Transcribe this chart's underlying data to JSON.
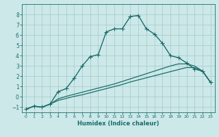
{
  "title": "",
  "xlabel": "Humidex (Indice chaleur)",
  "bg_color": "#cce8e8",
  "grid_color": "#aacece",
  "line_color": "#1a6b6b",
  "xlim": [
    -0.5,
    23.5
  ],
  "ylim": [
    -1.5,
    9.0
  ],
  "yticks": [
    -1,
    0,
    1,
    2,
    3,
    4,
    5,
    6,
    7,
    8
  ],
  "xticks": [
    0,
    1,
    2,
    3,
    4,
    5,
    6,
    7,
    8,
    9,
    10,
    11,
    12,
    13,
    14,
    15,
    16,
    17,
    18,
    19,
    20,
    21,
    22,
    23
  ],
  "series": [
    {
      "x": [
        0,
        1,
        2,
        3,
        4,
        5,
        6,
        7,
        8,
        9,
        10,
        11,
        12,
        13,
        14,
        15,
        16,
        17,
        18,
        19,
        20,
        21,
        22,
        23
      ],
      "y": [
        -1.2,
        -0.9,
        -1.0,
        -0.7,
        0.5,
        0.8,
        1.8,
        3.0,
        3.9,
        4.1,
        6.3,
        6.6,
        6.6,
        7.8,
        7.9,
        6.6,
        6.1,
        5.2,
        4.0,
        3.8,
        3.3,
        2.7,
        2.5,
        1.4
      ],
      "marker": true,
      "linewidth": 1.0,
      "markersize": 4
    },
    {
      "x": [
        0,
        1,
        2,
        3,
        4,
        5,
        6,
        7,
        8,
        9,
        10,
        11,
        12,
        13,
        14,
        15,
        16,
        17,
        18,
        19,
        20,
        21,
        22,
        23
      ],
      "y": [
        -1.2,
        -0.9,
        -1.0,
        -0.7,
        -0.35,
        -0.15,
        0.05,
        0.2,
        0.4,
        0.6,
        0.8,
        1.0,
        1.2,
        1.45,
        1.65,
        1.85,
        2.05,
        2.25,
        2.45,
        2.65,
        2.85,
        2.85,
        2.5,
        1.4
      ],
      "marker": false,
      "linewidth": 0.9
    },
    {
      "x": [
        0,
        1,
        2,
        3,
        4,
        5,
        6,
        7,
        8,
        9,
        10,
        11,
        12,
        13,
        14,
        15,
        16,
        17,
        18,
        19,
        20,
        21,
        22,
        23
      ],
      "y": [
        -1.2,
        -0.9,
        -1.0,
        -0.7,
        -0.2,
        0.05,
        0.25,
        0.45,
        0.65,
        0.85,
        1.05,
        1.25,
        1.5,
        1.75,
        2.0,
        2.25,
        2.5,
        2.75,
        3.0,
        3.2,
        3.2,
        3.0,
        2.5,
        1.4
      ],
      "marker": false,
      "linewidth": 0.9
    }
  ]
}
